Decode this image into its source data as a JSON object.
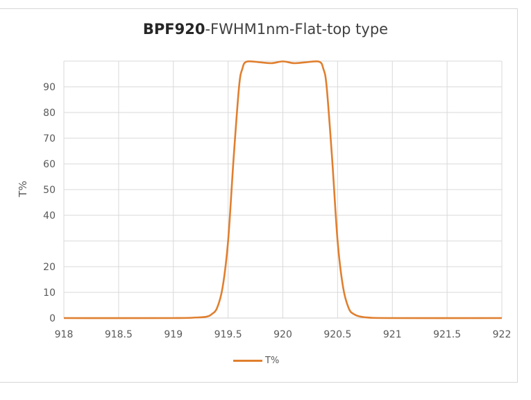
{
  "chart_data": {
    "type": "line",
    "title_bold": "BPF920",
    "title_rest": "-FWHM1nm-Flat-top type",
    "title": "BPF920-FWHM1nm-Flat-top type",
    "xlabel": "",
    "ylabel": "T%",
    "xlim": [
      918,
      922
    ],
    "ylim": [
      0,
      100
    ],
    "x_ticks": [
      "918",
      "918.5",
      "919",
      "919.5",
      "920",
      "920.5",
      "921",
      "921.5",
      "922"
    ],
    "y_ticks": [
      "0",
      "10",
      "20",
      "",
      "40",
      "50",
      "60",
      "70",
      "80",
      "90"
    ],
    "grid": true,
    "legend_position": "bottom",
    "series": [
      {
        "name": "T%",
        "color": "#e07f2f",
        "x": [
          918,
          919.0,
          919.2,
          919.3,
          919.35,
          919.4,
          919.45,
          919.5,
          919.55,
          919.6,
          919.63,
          919.67,
          919.8,
          919.9,
          920.0,
          920.1,
          920.2,
          920.33,
          920.37,
          920.4,
          920.45,
          920.5,
          920.55,
          920.6,
          920.65,
          920.75,
          921.0,
          922
        ],
        "y": [
          0,
          0,
          0.2,
          0.5,
          1.5,
          4,
          12,
          30,
          62,
          90,
          97,
          99.8,
          99.5,
          99.2,
          99.9,
          99.2,
          99.5,
          99.8,
          97,
          90,
          62,
          30,
          12,
          4,
          1.5,
          0.3,
          0,
          0
        ]
      }
    ]
  },
  "legend": {
    "label": "T%"
  }
}
